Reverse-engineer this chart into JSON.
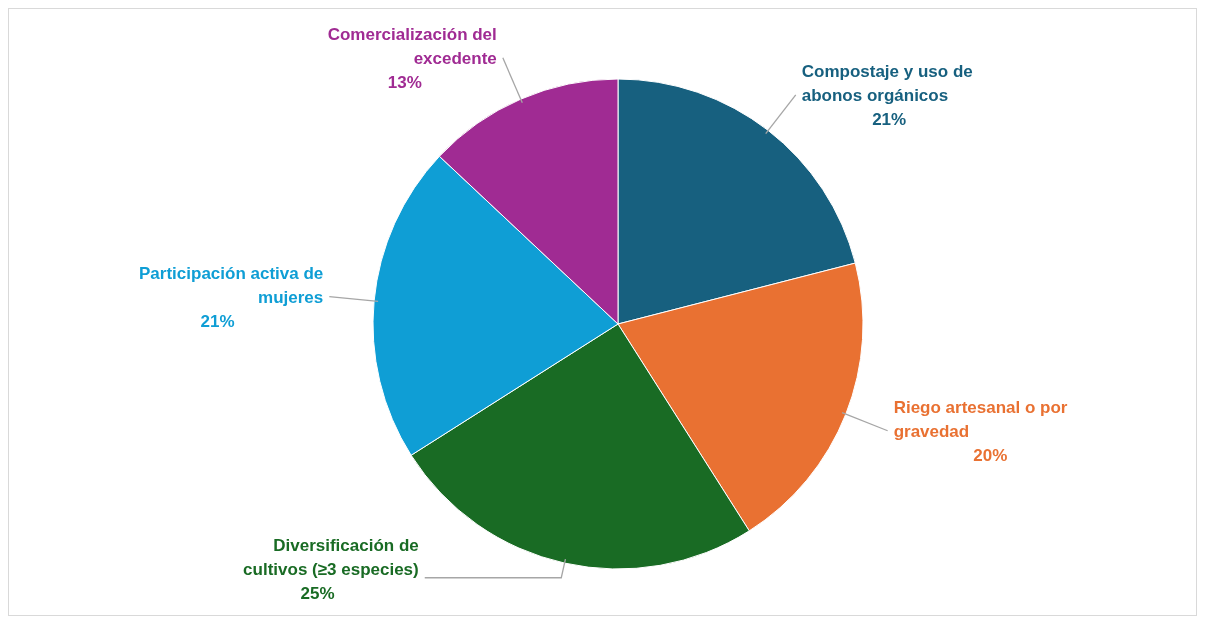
{
  "chart_data": {
    "type": "pie",
    "categories": [
      "Compostaje y uso de abonos orgánicos",
      "Riego artesanal o por gravedad",
      "Diversificación de cultivos (≥3 especies)",
      "Participación activa de mujeres",
      "Comercialización del excedente"
    ],
    "values": [
      21,
      20,
      25,
      21,
      13
    ],
    "value_labels": [
      "21%",
      "20%",
      "25%",
      "21%",
      "13%"
    ],
    "colors": [
      "#17607f",
      "#e97132",
      "#196b24",
      "#0f9ed5",
      "#a02b93"
    ],
    "legend": false
  }
}
